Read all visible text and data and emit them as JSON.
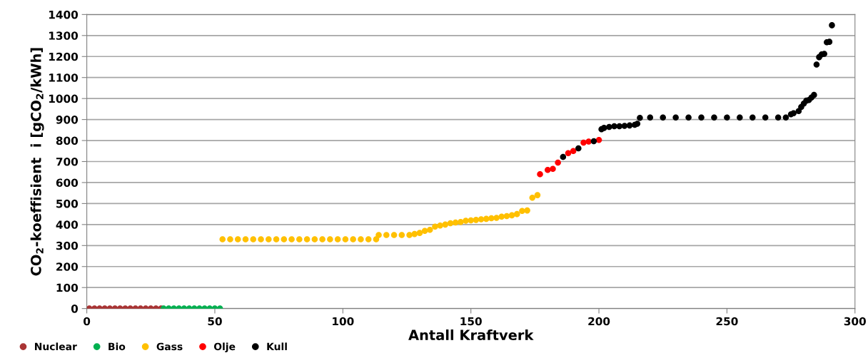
{
  "chart_data": {
    "type": "scatter",
    "xlabel": "Antall Kraftverk",
    "ylabel": "CO$_{2}$-koeffisient  i [gCO$_{2}$/kWh]",
    "xlim": [
      0,
      300
    ],
    "xticks": [
      0,
      50,
      100,
      150,
      200,
      250,
      300
    ],
    "ylim": [
      0,
      1400
    ],
    "yticks": [
      0,
      100,
      200,
      300,
      400,
      500,
      600,
      700,
      800,
      900,
      1000,
      1100,
      1200,
      1300,
      1400
    ],
    "grid": "y",
    "legend": "bottom left",
    "marker": "circle",
    "series": [
      {
        "name": "Nuclear",
        "color": "#a93434",
        "x": [
          1,
          3,
          5,
          7,
          9,
          11,
          13,
          15,
          17,
          19,
          21,
          23,
          25,
          27,
          29
        ],
        "values": [
          0,
          0,
          0,
          0,
          0,
          0,
          0,
          0,
          0,
          0,
          0,
          0,
          0,
          0,
          0
        ]
      },
      {
        "name": "Bio",
        "color": "#00b050",
        "x": [
          30,
          32,
          34,
          36,
          38,
          40,
          42,
          44,
          46,
          48,
          50,
          52
        ],
        "values": [
          0,
          0,
          0,
          0,
          0,
          0,
          0,
          0,
          0,
          0,
          0,
          0
        ]
      },
      {
        "name": "Gass",
        "color": "#ffc000",
        "x": [
          53,
          56,
          59,
          62,
          65,
          68,
          71,
          74,
          77,
          80,
          83,
          86,
          89,
          92,
          95,
          98,
          101,
          104,
          107,
          110,
          113,
          114,
          117,
          120,
          123,
          126,
          128,
          130,
          132,
          134,
          136,
          138,
          140,
          142,
          144,
          146,
          148,
          150,
          152,
          154,
          156,
          158,
          160,
          162,
          164,
          166,
          168,
          170,
          172,
          174,
          176
        ],
        "values": [
          330,
          330,
          330,
          330,
          330,
          330,
          330,
          330,
          330,
          330,
          330,
          330,
          330,
          330,
          330,
          330,
          330,
          330,
          330,
          330,
          330,
          350,
          350,
          350,
          350,
          350,
          355,
          360,
          370,
          375,
          390,
          395,
          400,
          406,
          410,
          412,
          418,
          420,
          422,
          425,
          427,
          430,
          432,
          438,
          440,
          444,
          450,
          465,
          467,
          528,
          540
        ]
      },
      {
        "name": "Olje",
        "color": "#ff0000",
        "x": [
          177,
          180,
          182,
          184,
          188,
          190,
          194,
          196,
          200
        ],
        "values": [
          640,
          660,
          665,
          695,
          740,
          750,
          790,
          795,
          803
        ]
      },
      {
        "name": "Kull",
        "color": "#000000",
        "x": [
          186,
          192,
          198,
          201,
          202,
          204,
          206,
          208,
          210,
          212,
          214,
          215,
          216,
          220,
          225,
          230,
          235,
          240,
          245,
          250,
          255,
          260,
          265,
          270,
          273,
          275,
          276,
          278,
          279,
          280,
          281,
          282,
          283,
          284,
          285,
          286,
          287,
          288,
          289,
          290,
          291
        ],
        "values": [
          722,
          763,
          797,
          854,
          860,
          865,
          868,
          868,
          870,
          872,
          875,
          880,
          908,
          910,
          910,
          910,
          910,
          910,
          910,
          910,
          910,
          910,
          910,
          910,
          910,
          925,
          930,
          940,
          960,
          976,
          990,
          993,
          1005,
          1017,
          1162,
          1197,
          1210,
          1213,
          1268,
          1270,
          1349
        ]
      }
    ]
  }
}
